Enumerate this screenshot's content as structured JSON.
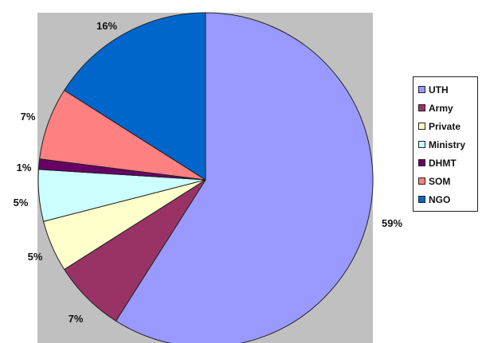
{
  "chart_data": {
    "type": "pie",
    "slices": [
      {
        "label": "UTH",
        "value": 59,
        "display": "59%",
        "color": "#9999ff"
      },
      {
        "label": "Army",
        "value": 7,
        "display": "7%",
        "color": "#993366"
      },
      {
        "label": "Private",
        "value": 5,
        "display": "5%",
        "color": "#ffffcc"
      },
      {
        "label": "Ministry",
        "value": 5,
        "display": "5%",
        "color": "#ccffff"
      },
      {
        "label": "DHMT",
        "value": 1,
        "display": "1%",
        "color": "#660066"
      },
      {
        "label": "SOM",
        "value": 7,
        "display": "7%",
        "color": "#ff8080"
      },
      {
        "label": "NGO",
        "value": 16,
        "display": "16%",
        "color": "#0066cc"
      }
    ],
    "legend_position": "right",
    "plot_background": "#c0c0c0"
  }
}
